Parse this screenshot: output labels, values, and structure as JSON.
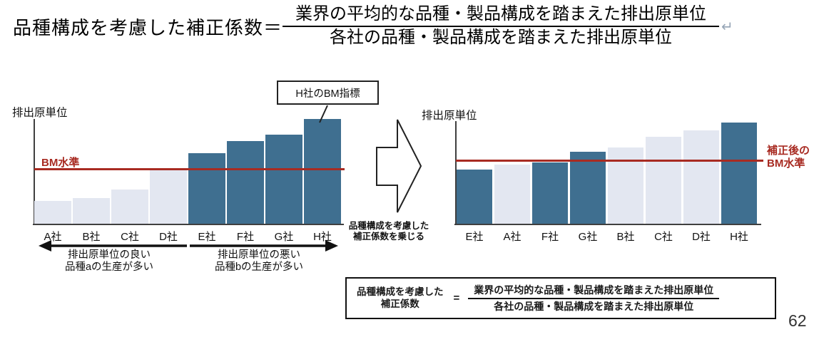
{
  "page_number": "62",
  "colors": {
    "bar_dark": "#3f6f90",
    "bar_light": "#e3e7f1",
    "bm_red": "#a82b22"
  },
  "formula_top": {
    "lhs": "品種構成を考慮した補正係数＝",
    "numerator": "業界の平均的な品種・製品構成を踏まえた排出原単位",
    "denominator": "各社の品種・製品構成を踏まえた排出原単位",
    "return_mark": "↵"
  },
  "left_chart": {
    "axis_label": "排出原単位",
    "bm_label": "BM水準",
    "bm_line_value": 77,
    "callout": "H社のBM指標",
    "bars": [
      {
        "label": "A社",
        "value": 32,
        "shade": "light"
      },
      {
        "label": "B社",
        "value": 36,
        "shade": "light"
      },
      {
        "label": "C社",
        "value": 48,
        "shade": "light"
      },
      {
        "label": "D社",
        "value": 75,
        "shade": "light"
      },
      {
        "label": "E社",
        "value": 99,
        "shade": "dark"
      },
      {
        "label": "F社",
        "value": 116,
        "shade": "dark"
      },
      {
        "label": "G社",
        "value": 125,
        "shade": "dark"
      },
      {
        "label": "H社",
        "value": 147,
        "shade": "dark"
      }
    ],
    "group_notes": {
      "left_line1": "排出原単位の良い",
      "left_line2": "品種aの生産が多い",
      "right_line1": "排出原単位の悪い",
      "right_line2": "品種bの生産が多い"
    }
  },
  "transform_arrow": {
    "caption_line1": "品種構成を考慮した",
    "caption_line2": "補正係数を乗じる"
  },
  "right_chart": {
    "axis_label": "排出原単位",
    "bm_label_line1": "補正後の",
    "bm_label_line2": "BM水準",
    "bm_line_value": 89,
    "bars": [
      {
        "label": "E社",
        "value": 76,
        "shade": "dark"
      },
      {
        "label": "A社",
        "value": 83,
        "shade": "light"
      },
      {
        "label": "F社",
        "value": 86,
        "shade": "dark"
      },
      {
        "label": "G社",
        "value": 101,
        "shade": "dark"
      },
      {
        "label": "B社",
        "value": 107,
        "shade": "light"
      },
      {
        "label": "C社",
        "value": 122,
        "shade": "light"
      },
      {
        "label": "D社",
        "value": 131,
        "shade": "light"
      },
      {
        "label": "H社",
        "value": 142,
        "shade": "dark"
      }
    ]
  },
  "formula_box": {
    "label_line1": "品種構成を考慮した",
    "label_line2": "補正係数",
    "equals": "=",
    "numerator": "業界の平均的な品種・製品構成を踏まえた排出原単位",
    "denominator": "各社の品種・製品構成を踏まえた排出原単位"
  },
  "chart_data": [
    {
      "type": "bar",
      "ylabel": "排出原単位",
      "categories": [
        "A社",
        "B社",
        "C社",
        "D社",
        "E社",
        "F社",
        "G社",
        "H社"
      ],
      "values": [
        32,
        36,
        48,
        75,
        99,
        116,
        125,
        147
      ],
      "ylim": [
        0,
        160
      ],
      "grid": false,
      "annotations": [
        "BM水準 = 77 (相対値・目盛なし)",
        "H社のBM指標 → H社の棒の頂点"
      ]
    },
    {
      "type": "bar",
      "ylabel": "排出原単位",
      "categories": [
        "E社",
        "A社",
        "F社",
        "G社",
        "B社",
        "C社",
        "D社",
        "H社"
      ],
      "values": [
        76,
        83,
        86,
        101,
        107,
        122,
        131,
        142
      ],
      "ylim": [
        0,
        160
      ],
      "grid": false,
      "annotations": [
        "補正後のBM水準 = 89 (相対値・目盛なし)"
      ]
    }
  ]
}
